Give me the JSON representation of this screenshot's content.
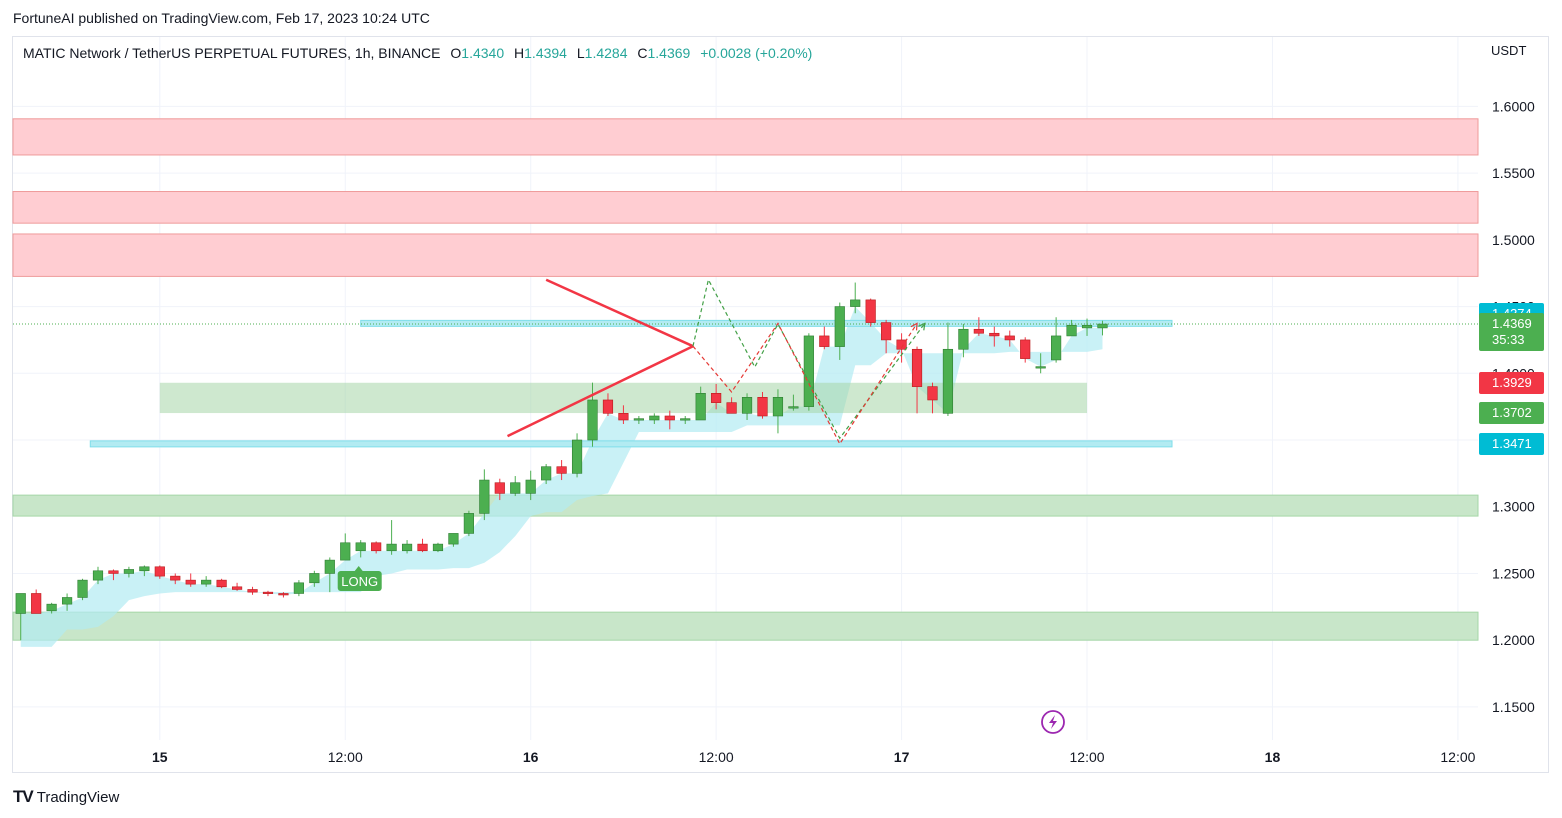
{
  "publish_line": "FortuneAI published on TradingView.com, Feb 17, 2023 10:24 UTC",
  "legend": {
    "symbol": "MATIC Network / TetherUS PERPETUAL FUTURES, 1h, BINANCE",
    "open_key": "O",
    "open": "1.4340",
    "high_key": "H",
    "high": "1.4394",
    "low_key": "L",
    "low": "1.4284",
    "close_key": "C",
    "close": "1.4369",
    "change": "+0.0028 (+0.20%)"
  },
  "currency": "USDT",
  "footer": {
    "logo": "TV",
    "brand": "TradingView"
  },
  "event_icon": "lightning-icon",
  "price_tags": [
    {
      "name": "level-top",
      "value": "1.4374",
      "color": "#00bcd4"
    },
    {
      "name": "current",
      "value": "1.4369",
      "countdown": "35:33",
      "color": "#4caf50"
    },
    {
      "name": "stop",
      "value": "1.3929",
      "color": "#f23645"
    },
    {
      "name": "entry",
      "value": "1.3702",
      "color": "#4caf50"
    },
    {
      "name": "level-bottom",
      "value": "1.3471",
      "color": "#00bcd4"
    }
  ],
  "chart_data": {
    "type": "candlestick",
    "title": "MATIC Network / TetherUS PERPETUAL FUTURES, 1h, BINANCE",
    "y_axis": {
      "ticks": [
        "1.6000",
        "1.5500",
        "1.5000",
        "1.4500",
        "1.4000",
        "1.3500",
        "1.3000",
        "1.2500",
        "1.2000",
        "1.1500"
      ],
      "range": [
        1.1252,
        1.652
      ]
    },
    "x_axis": {
      "ticks": [
        {
          "label": "15",
          "bold": true,
          "hours": 0
        },
        {
          "label": "12:00",
          "bold": false,
          "hours": 12
        },
        {
          "label": "16",
          "bold": true,
          "hours": 24
        },
        {
          "label": "12:00",
          "bold": false,
          "hours": 36
        },
        {
          "label": "17",
          "bold": true,
          "hours": 48
        },
        {
          "label": "12:00",
          "bold": false,
          "hours": 60
        },
        {
          "label": "18",
          "bold": true,
          "hours": 72
        },
        {
          "label": "12:00",
          "bold": false,
          "hours": 84
        }
      ],
      "range_hours": [
        -9.5,
        85.3
      ]
    },
    "candles": [
      [
        1.22,
        1.235,
        1.2,
        1.235
      ],
      [
        1.235,
        1.238,
        1.22,
        1.22
      ],
      [
        1.222,
        1.228,
        1.22,
        1.227
      ],
      [
        1.227,
        1.235,
        1.222,
        1.232
      ],
      [
        1.232,
        1.246,
        1.23,
        1.245
      ],
      [
        1.245,
        1.255,
        1.242,
        1.252
      ],
      [
        1.252,
        1.253,
        1.245,
        1.25
      ],
      [
        1.25,
        1.255,
        1.247,
        1.253
      ],
      [
        1.252,
        1.256,
        1.248,
        1.255
      ],
      [
        1.255,
        1.256,
        1.246,
        1.248
      ],
      [
        1.248,
        1.25,
        1.242,
        1.245
      ],
      [
        1.245,
        1.25,
        1.24,
        1.242
      ],
      [
        1.242,
        1.248,
        1.24,
        1.245
      ],
      [
        1.245,
        1.246,
        1.239,
        1.24
      ],
      [
        1.24,
        1.243,
        1.237,
        1.238
      ],
      [
        1.238,
        1.24,
        1.234,
        1.236
      ],
      [
        1.236,
        1.237,
        1.233,
        1.235
      ],
      [
        1.235,
        1.236,
        1.232,
        1.234
      ],
      [
        1.235,
        1.245,
        1.233,
        1.243
      ],
      [
        1.243,
        1.252,
        1.24,
        1.25
      ],
      [
        1.25,
        1.262,
        1.236,
        1.26
      ],
      [
        1.26,
        1.28,
        1.26,
        1.273
      ],
      [
        1.267,
        1.275,
        1.262,
        1.273
      ],
      [
        1.273,
        1.274,
        1.265,
        1.267
      ],
      [
        1.267,
        1.29,
        1.264,
        1.272
      ],
      [
        1.267,
        1.275,
        1.265,
        1.272
      ],
      [
        1.272,
        1.276,
        1.266,
        1.267
      ],
      [
        1.267,
        1.273,
        1.266,
        1.272
      ],
      [
        1.272,
        1.28,
        1.27,
        1.28
      ],
      [
        1.28,
        1.297,
        1.278,
        1.295
      ],
      [
        1.295,
        1.328,
        1.29,
        1.32
      ],
      [
        1.318,
        1.321,
        1.305,
        1.31
      ],
      [
        1.31,
        1.323,
        1.308,
        1.318
      ],
      [
        1.31,
        1.327,
        1.305,
        1.32
      ],
      [
        1.32,
        1.332,
        1.317,
        1.33
      ],
      [
        1.33,
        1.335,
        1.32,
        1.325
      ],
      [
        1.325,
        1.355,
        1.322,
        1.35
      ],
      [
        1.35,
        1.393,
        1.345,
        1.38
      ],
      [
        1.38,
        1.385,
        1.368,
        1.37
      ],
      [
        1.37,
        1.376,
        1.362,
        1.365
      ],
      [
        1.365,
        1.368,
        1.362,
        1.366
      ],
      [
        1.365,
        1.37,
        1.362,
        1.368
      ],
      [
        1.368,
        1.372,
        1.358,
        1.365
      ],
      [
        1.365,
        1.368,
        1.362,
        1.366
      ],
      [
        1.365,
        1.39,
        1.365,
        1.385
      ],
      [
        1.385,
        1.392,
        1.373,
        1.378
      ],
      [
        1.378,
        1.382,
        1.37,
        1.37
      ],
      [
        1.37,
        1.385,
        1.365,
        1.382
      ],
      [
        1.382,
        1.386,
        1.366,
        1.368
      ],
      [
        1.368,
        1.388,
        1.355,
        1.382
      ],
      [
        1.375,
        1.384,
        1.372,
        1.375
      ],
      [
        1.375,
        1.43,
        1.372,
        1.428
      ],
      [
        1.428,
        1.435,
        1.418,
        1.42
      ],
      [
        1.42,
        1.453,
        1.41,
        1.45
      ],
      [
        1.45,
        1.468,
        1.445,
        1.455
      ],
      [
        1.455,
        1.456,
        1.435,
        1.438
      ],
      [
        1.438,
        1.44,
        1.415,
        1.425
      ],
      [
        1.425,
        1.43,
        1.408,
        1.418
      ],
      [
        1.418,
        1.42,
        1.37,
        1.39
      ],
      [
        1.39,
        1.393,
        1.37,
        1.38
      ],
      [
        1.37,
        1.438,
        1.368,
        1.418
      ],
      [
        1.418,
        1.437,
        1.412,
        1.433
      ],
      [
        1.433,
        1.442,
        1.428,
        1.43
      ],
      [
        1.43,
        1.435,
        1.42,
        1.428
      ],
      [
        1.428,
        1.432,
        1.42,
        1.425
      ],
      [
        1.425,
        1.427,
        1.408,
        1.411
      ],
      [
        1.405,
        1.415,
        1.4,
        1.405
      ],
      [
        1.41,
        1.442,
        1.408,
        1.428
      ],
      [
        1.428,
        1.44,
        1.43,
        1.436
      ],
      [
        1.434,
        1.441,
        1.428,
        1.436
      ],
      [
        1.434,
        1.4394,
        1.4284,
        1.4369
      ]
    ],
    "zones": [
      {
        "name": "resistance-zone-1",
        "y1": 1.5636,
        "y2": 1.5907,
        "color": "#ffcdd2"
      },
      {
        "name": "resistance-zone-2",
        "y1": 1.5125,
        "y2": 1.5362,
        "color": "#ffcdd2"
      },
      {
        "name": "resistance-zone-3",
        "y1": 1.4726,
        "y2": 1.5044,
        "color": "#ffcdd2"
      },
      {
        "name": "support-zone-1",
        "y1": 1.293,
        "y2": 1.3087,
        "color": "#c8e6c9"
      },
      {
        "name": "support-zone-2",
        "y1": 1.2,
        "y2": 1.221,
        "color": "#c8e6c9"
      }
    ],
    "levels": [
      {
        "name": "level-top",
        "price": 1.4374,
        "from_h": 13,
        "to_h": 65.5,
        "color": "#b2ebf2"
      },
      {
        "name": "level-bottom",
        "price": 1.3471,
        "from_h": -4.5,
        "to_h": 65.5,
        "color": "#b2ebf2"
      }
    ],
    "position": {
      "label": "LONG",
      "entry": 1.3702,
      "target": 1.3929,
      "from_h": 0,
      "to_h": 60
    },
    "triangle": [
      [
        25,
        1.4701
      ],
      [
        34.5,
        1.4203
      ],
      [
        22.5,
        1.3529
      ]
    ],
    "projections": {
      "green": [
        [
          34.5,
          1.4203
        ],
        [
          35.5,
          1.4701
        ],
        [
          38.5,
          1.4047
        ],
        [
          40,
          1.4369
        ],
        [
          44,
          1.3513
        ],
        [
          49.5,
          1.4374
        ]
      ],
      "red": [
        [
          34.5,
          1.4203
        ],
        [
          37,
          1.386
        ],
        [
          40,
          1.4374
        ],
        [
          44,
          1.3471
        ],
        [
          49,
          1.4374
        ]
      ]
    }
  }
}
